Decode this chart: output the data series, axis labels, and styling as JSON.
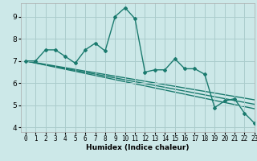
{
  "xlabel": "Humidex (Indice chaleur)",
  "xlim": [
    -0.5,
    23
  ],
  "ylim": [
    3.8,
    9.6
  ],
  "yticks": [
    4,
    5,
    6,
    7,
    8,
    9
  ],
  "xticks": [
    0,
    1,
    2,
    3,
    4,
    5,
    6,
    7,
    8,
    9,
    10,
    11,
    12,
    13,
    14,
    15,
    16,
    17,
    18,
    19,
    20,
    21,
    22,
    23
  ],
  "background_color": "#cce8e8",
  "grid_color": "#aacccc",
  "line_color": "#1a7a6e",
  "line1_x": [
    0,
    1,
    2,
    3,
    4,
    5,
    6,
    7,
    8,
    9,
    10,
    11,
    12,
    13,
    14,
    15,
    16,
    17,
    18,
    19,
    20,
    21,
    22,
    23
  ],
  "line1_y": [
    7.0,
    7.0,
    7.5,
    7.5,
    7.2,
    6.9,
    7.5,
    7.8,
    7.45,
    9.0,
    9.4,
    8.9,
    6.5,
    6.6,
    6.6,
    7.1,
    6.65,
    6.65,
    6.4,
    4.9,
    5.2,
    5.3,
    4.65,
    4.2
  ],
  "trend_lines": [
    {
      "x": [
        0,
        23
      ],
      "y": [
        7.0,
        4.85
      ]
    },
    {
      "x": [
        0,
        23
      ],
      "y": [
        7.0,
        5.05
      ]
    },
    {
      "x": [
        0,
        23
      ],
      "y": [
        7.0,
        5.25
      ]
    }
  ],
  "xlabel_fontsize": 6.5,
  "tick_fontsize": 5.5,
  "ytick_fontsize": 6.5,
  "line_width": 1.0,
  "marker_size": 2.0
}
